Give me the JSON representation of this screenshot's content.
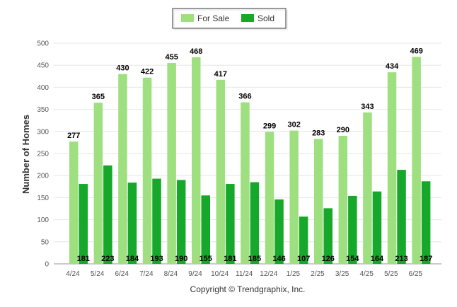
{
  "chart_data": {
    "type": "bar",
    "title": "",
    "xlabel": "",
    "ylabel": "Number of Homes",
    "ylim": [
      0,
      500
    ],
    "yticks": [
      0,
      50,
      100,
      150,
      200,
      250,
      300,
      350,
      400,
      450,
      500
    ],
    "grid": true,
    "legend_position": "top-center",
    "categories": [
      "4/24",
      "5/24",
      "6/24",
      "7/24",
      "8/24",
      "9/24",
      "10/24",
      "11/24",
      "12/24",
      "1/25",
      "2/25",
      "3/25",
      "4/25",
      "5/25",
      "6/25"
    ],
    "series": [
      {
        "name": "For Sale",
        "color": "#9ee07f",
        "values": [
          277,
          365,
          430,
          422,
          455,
          468,
          417,
          366,
          299,
          302,
          283,
          290,
          343,
          434,
          469
        ]
      },
      {
        "name": "Sold",
        "color": "#15a82a",
        "values": [
          181,
          223,
          184,
          193,
          190,
          155,
          181,
          185,
          146,
          107,
          126,
          154,
          164,
          213,
          187
        ]
      }
    ]
  },
  "footer": {
    "copyright": "Copyright © Trendgraphix, Inc."
  }
}
